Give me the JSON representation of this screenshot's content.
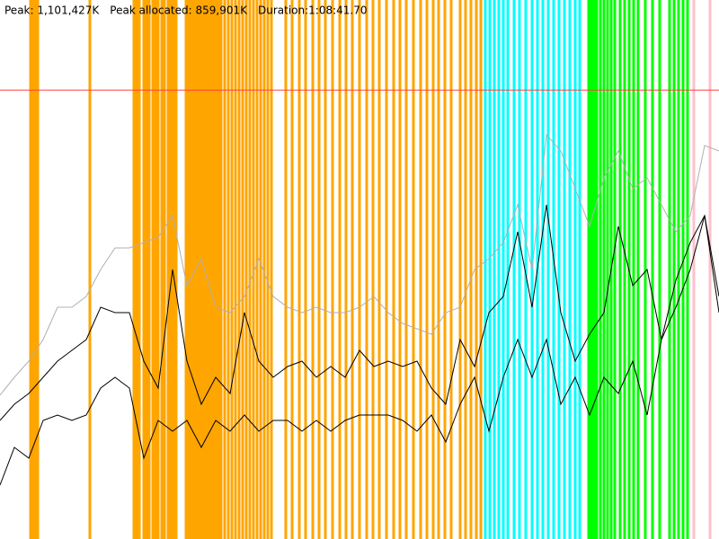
{
  "header": {
    "stats": [
      "Peak: 1,101,427K",
      "Peak allocated: 859,901K",
      "Duration:1:08:41.70"
    ]
  },
  "chart_data": {
    "type": "line",
    "xlim": [
      0,
      800
    ],
    "ylim": [
      0,
      100
    ],
    "limit": 83.3,
    "limit_color": "#ff4040",
    "x": [
      0,
      16,
      32,
      48,
      64,
      80,
      96,
      112,
      128,
      144,
      160,
      176,
      192,
      208,
      224,
      240,
      256,
      272,
      288,
      304,
      320,
      336,
      352,
      368,
      384,
      400,
      416,
      432,
      448,
      464,
      480,
      496,
      512,
      528,
      544,
      560,
      576,
      592,
      608,
      624,
      640,
      656,
      672,
      688,
      704,
      720,
      736,
      752,
      768,
      784,
      800
    ],
    "series": [
      {
        "color": "#b0b0b0",
        "values": [
          26.7,
          30,
          33,
          37,
          43,
          43,
          45,
          50,
          54,
          54,
          55,
          56,
          60,
          47,
          52,
          43,
          42,
          45,
          52,
          45,
          43,
          42,
          43,
          42,
          42,
          43,
          45,
          42,
          40,
          39,
          38,
          42,
          43,
          50,
          52,
          55,
          62,
          50,
          75,
          72,
          65,
          58,
          67,
          72,
          65,
          67,
          62,
          57,
          60,
          73,
          72
        ]
      },
      {
        "color": "#000000",
        "values": [
          22,
          25,
          27,
          30,
          33,
          35,
          37,
          43,
          42,
          42,
          33,
          28,
          50,
          33,
          25,
          30,
          27,
          42,
          33,
          30,
          32,
          33,
          30,
          32,
          30,
          35,
          32,
          33,
          32,
          33,
          28,
          25,
          37,
          32,
          42,
          45,
          57,
          43,
          62,
          42,
          33,
          38,
          42,
          58,
          47,
          50,
          37,
          48,
          55,
          60,
          45
        ]
      },
      {
        "color": "#000000",
        "values": [
          10,
          17,
          15,
          22,
          23,
          22,
          23,
          28,
          30,
          28,
          15,
          22,
          20,
          22,
          17,
          22,
          20,
          23,
          20,
          22,
          22,
          20,
          22,
          20,
          22,
          23,
          23,
          23,
          22,
          20,
          23,
          18,
          25,
          30,
          20,
          30,
          37,
          30,
          37,
          25,
          30,
          23,
          30,
          27,
          33,
          23,
          37,
          43,
          50,
          60,
          42
        ]
      }
    ],
    "events": [
      {
        "color": "#ffa500",
        "x": [
          34,
          37,
          40,
          42,
          100,
          149,
          152,
          155,
          160,
          163,
          166,
          170,
          173,
          176,
          180,
          183,
          187,
          190,
          193,
          196,
          207,
          210,
          213,
          216,
          219,
          222,
          225,
          228,
          231,
          234,
          237,
          240,
          243,
          246,
          250,
          254,
          258,
          262,
          266,
          270,
          274,
          278,
          282,
          286,
          290,
          294,
          298,
          302,
          318,
          325,
          333,
          340,
          348,
          355,
          362,
          370,
          378,
          385,
          392,
          400,
          408,
          415,
          422,
          430,
          438,
          445,
          452,
          460,
          468,
          475,
          482,
          488,
          495,
          502,
          512,
          518,
          524,
          530,
          535
        ]
      },
      {
        "color": "#00ffff",
        "x": [
          540,
          545,
          550,
          555,
          560,
          565,
          572,
          578,
          585,
          592,
          598,
          604,
          610,
          616,
          622,
          628,
          634,
          640,
          645
        ]
      },
      {
        "color": "#00ff00",
        "x": [
          655,
          658,
          661,
          664,
          668,
          672,
          676,
          680,
          684,
          690,
          695,
          700,
          705,
          710,
          718,
          726,
          734,
          745,
          750,
          755,
          760,
          765
        ]
      },
      {
        "color": "#ffc0cb",
        "x": [
          772,
          790
        ]
      }
    ]
  }
}
